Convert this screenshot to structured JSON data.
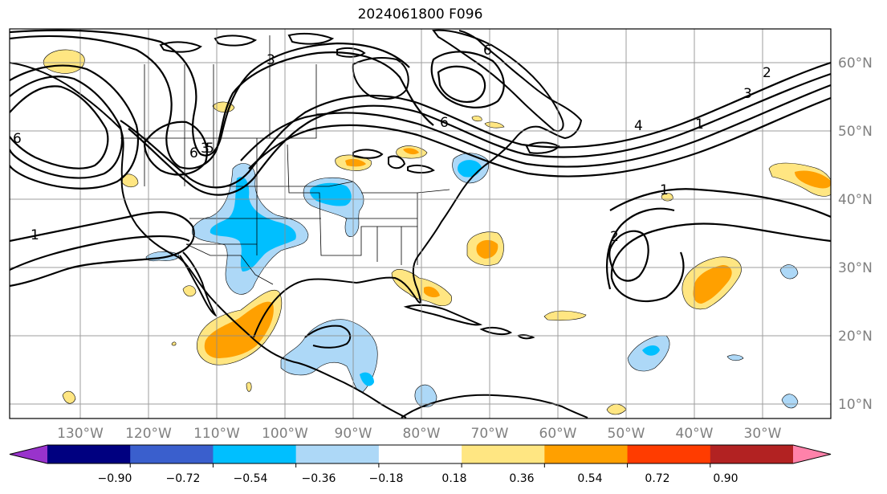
{
  "title": "2024061800 F096",
  "map": {
    "lon_labels": [
      "130°W",
      "120°W",
      "110°W",
      "100°W",
      "90°W",
      "80°W",
      "70°W",
      "60°W",
      "50°W",
      "40°W",
      "30°W"
    ],
    "lat_labels": [
      "60°N",
      "50°N",
      "40°N",
      "30°N",
      "20°N",
      "10°N"
    ],
    "contour_labels": [
      "3",
      "3",
      "6",
      "5",
      "6",
      "6",
      "4",
      "1",
      "3",
      "2",
      "1",
      "1",
      "2",
      "6"
    ],
    "gridlines": true
  },
  "colorbar": {
    "ticks": [
      "−0.90",
      "−0.72",
      "−0.54",
      "−0.36",
      "−0.18",
      "0.18",
      "0.36",
      "0.54",
      "0.72",
      "0.90"
    ],
    "colors": [
      "#9933cc",
      "#000080",
      "#3a5fcd",
      "#00bfff",
      "#add8f7",
      "#ffffff",
      "#ffe682",
      "#ffa000",
      "#ff3c00",
      "#b22222",
      "#ff82aa"
    ],
    "extend": "both"
  }
}
